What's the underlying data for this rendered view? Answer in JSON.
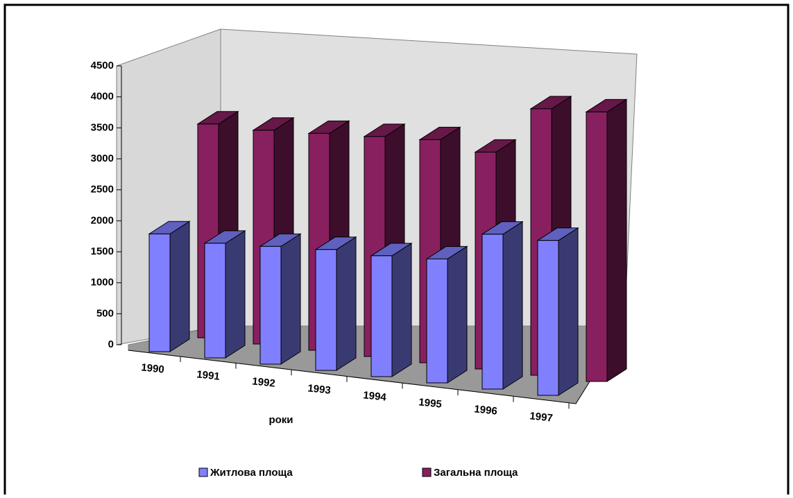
{
  "chart_data": {
    "type": "bar3d",
    "x_label": "роки",
    "categories": [
      "1990",
      "1991",
      "1992",
      "1993",
      "1994",
      "1995",
      "1996",
      "1997"
    ],
    "series": [
      {
        "name": "Житлова площа",
        "color": "#8080ff",
        "values": [
          1900,
          1850,
          1900,
          1950,
          1950,
          2000,
          2500,
          2500
        ]
      },
      {
        "name": "Загальна площа",
        "color": "#882060",
        "values": [
          3450,
          3450,
          3500,
          3550,
          3600,
          3500,
          4300,
          4350
        ]
      }
    ],
    "ylim": [
      0,
      4500
    ],
    "yticks": [
      0,
      500,
      1000,
      1500,
      2000,
      2500,
      3000,
      3500,
      4000,
      4500
    ]
  }
}
